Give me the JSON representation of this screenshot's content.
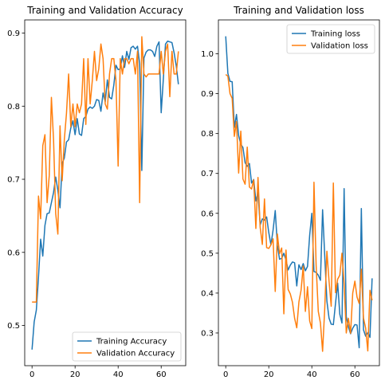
{
  "colors": {
    "series_a": "#1f77b4",
    "series_b": "#ff7f0e"
  },
  "chart_data": [
    {
      "type": "line",
      "title": "Training and Validation Accuracy",
      "xlabel": "",
      "ylabel": "",
      "xlim": [
        -3.4,
        71.4
      ],
      "ylim": [
        0.445,
        0.918
      ],
      "xticks": [
        0,
        20,
        40,
        60
      ],
      "yticks": [
        0.5,
        0.6,
        0.7,
        0.8,
        0.9
      ],
      "ytick_labels": [
        "0.5",
        "0.6",
        "0.7",
        "0.8",
        "0.9"
      ],
      "grid": false,
      "legend_position": "lower-right",
      "series": [
        {
          "name": "Training Accuracy",
          "color": "#1f77b4",
          "x": [
            0,
            1,
            2,
            3,
            4,
            5,
            6,
            7,
            8,
            9,
            10,
            11,
            12,
            13,
            14,
            15,
            16,
            17,
            18,
            19,
            20,
            21,
            22,
            23,
            24,
            25,
            26,
            27,
            28,
            29,
            30,
            31,
            32,
            33,
            34,
            35,
            36,
            37,
            38,
            39,
            40,
            41,
            42,
            43,
            44,
            45,
            46,
            47,
            48,
            49,
            50,
            51,
            52,
            53,
            54,
            55,
            56,
            57,
            58,
            59,
            60,
            61,
            62,
            63,
            64,
            65,
            66,
            67,
            68
          ],
          "y": [
            0.467,
            0.505,
            0.521,
            0.566,
            0.618,
            0.595,
            0.637,
            0.653,
            0.654,
            0.668,
            0.682,
            0.703,
            0.685,
            0.661,
            0.722,
            0.729,
            0.751,
            0.754,
            0.77,
            0.78,
            0.761,
            0.783,
            0.762,
            0.76,
            0.783,
            0.786,
            0.796,
            0.799,
            0.797,
            0.8,
            0.809,
            0.808,
            0.793,
            0.818,
            0.806,
            0.836,
            0.812,
            0.81,
            0.829,
            0.856,
            0.85,
            0.851,
            0.869,
            0.853,
            0.875,
            0.864,
            0.88,
            0.882,
            0.878,
            0.882,
            0.858,
            0.712,
            0.866,
            0.874,
            0.877,
            0.877,
            0.875,
            0.868,
            0.882,
            0.888,
            0.791,
            0.837,
            0.885,
            0.889,
            0.888,
            0.887,
            0.873,
            0.855,
            0.83
          ]
        },
        {
          "name": "Validation Accuracy",
          "color": "#ff7f0e",
          "x": [
            0,
            1,
            2,
            3,
            4,
            5,
            6,
            7,
            8,
            9,
            10,
            11,
            12,
            13,
            14,
            15,
            16,
            17,
            18,
            19,
            20,
            21,
            22,
            23,
            24,
            25,
            26,
            27,
            28,
            29,
            30,
            31,
            32,
            33,
            34,
            35,
            36,
            37,
            38,
            39,
            40,
            41,
            42,
            43,
            44,
            45,
            46,
            47,
            48,
            49,
            50,
            51,
            52,
            53,
            54,
            55,
            56,
            57,
            58,
            59,
            60,
            61,
            62,
            63,
            64,
            65,
            66,
            67,
            68
          ],
          "y": [
            0.532,
            0.532,
            0.532,
            0.677,
            0.646,
            0.746,
            0.761,
            0.668,
            0.705,
            0.812,
            0.754,
            0.653,
            0.625,
            0.773,
            0.698,
            0.754,
            0.79,
            0.844,
            0.772,
            0.803,
            0.772,
            0.803,
            0.791,
            0.803,
            0.865,
            0.775,
            0.865,
            0.803,
            0.835,
            0.875,
            0.835,
            0.851,
            0.885,
            0.865,
            0.803,
            0.796,
            0.844,
            0.865,
            0.865,
            0.835,
            0.718,
            0.865,
            0.844,
            0.865,
            0.865,
            0.858,
            0.865,
            0.865,
            0.844,
            0.875,
            0.668,
            0.895,
            0.844,
            0.84,
            0.844,
            0.844,
            0.844,
            0.844,
            0.844,
            0.844,
            0.875,
            0.844,
            0.875,
            0.885,
            0.813,
            0.875,
            0.844,
            0.844,
            0.875
          ]
        }
      ]
    },
    {
      "type": "line",
      "title": "Training and Validation loss",
      "xlabel": "",
      "ylabel": "",
      "xlim": [
        -3.4,
        71.4
      ],
      "ylim": [
        0.218,
        1.085
      ],
      "xticks": [
        0,
        20,
        40,
        60
      ],
      "yticks": [
        0.3,
        0.4,
        0.5,
        0.6,
        0.7,
        0.8,
        0.9,
        1.0
      ],
      "ytick_labels": [
        "0.3",
        "0.4",
        "0.5",
        "0.6",
        "0.7",
        "0.8",
        "0.9",
        "1.0"
      ],
      "grid": false,
      "legend_position": "upper-right",
      "series": [
        {
          "name": "Training loss",
          "color": "#1f77b4",
          "x": [
            0,
            1,
            2,
            3,
            4,
            5,
            6,
            7,
            8,
            9,
            10,
            11,
            12,
            13,
            14,
            15,
            16,
            17,
            18,
            19,
            20,
            21,
            22,
            23,
            24,
            25,
            26,
            27,
            28,
            29,
            30,
            31,
            32,
            33,
            34,
            35,
            36,
            37,
            38,
            39,
            40,
            41,
            42,
            43,
            44,
            45,
            46,
            47,
            48,
            49,
            50,
            51,
            52,
            53,
            54,
            55,
            56,
            57,
            58,
            59,
            60,
            61,
            62,
            63,
            64,
            65,
            66,
            67,
            68
          ],
          "y": [
            1.044,
            0.951,
            0.931,
            0.93,
            0.815,
            0.848,
            0.795,
            0.773,
            0.765,
            0.727,
            0.718,
            0.725,
            0.676,
            0.685,
            0.631,
            0.652,
            0.571,
            0.586,
            0.583,
            0.591,
            0.552,
            0.521,
            0.558,
            0.607,
            0.52,
            0.485,
            0.487,
            0.5,
            0.483,
            0.458,
            0.47,
            0.478,
            0.476,
            0.418,
            0.471,
            0.459,
            0.474,
            0.456,
            0.467,
            0.545,
            0.6,
            0.454,
            0.452,
            0.445,
            0.432,
            0.609,
            0.493,
            0.38,
            0.337,
            0.322,
            0.321,
            0.374,
            0.425,
            0.347,
            0.325,
            0.662,
            0.341,
            0.315,
            0.298,
            0.312,
            0.321,
            0.32,
            0.263,
            0.612,
            0.308,
            0.292,
            0.301,
            0.289,
            0.437
          ]
        },
        {
          "name": "Validation loss",
          "color": "#ff7f0e",
          "x": [
            0,
            1,
            2,
            3,
            4,
            5,
            6,
            7,
            8,
            9,
            10,
            11,
            12,
            13,
            14,
            15,
            16,
            17,
            18,
            19,
            20,
            21,
            22,
            23,
            24,
            25,
            26,
            27,
            28,
            29,
            30,
            31,
            32,
            33,
            34,
            35,
            36,
            37,
            38,
            39,
            40,
            41,
            42,
            43,
            44,
            45,
            46,
            47,
            48,
            49,
            50,
            51,
            52,
            53,
            54,
            55,
            56,
            57,
            58,
            59,
            60,
            61,
            62,
            63,
            64,
            65,
            66,
            67,
            68
          ],
          "y": [
            0.948,
            0.944,
            0.9,
            0.888,
            0.793,
            0.83,
            0.701,
            0.806,
            0.686,
            0.673,
            0.766,
            0.666,
            0.661,
            0.684,
            0.562,
            0.69,
            0.565,
            0.522,
            0.636,
            0.514,
            0.512,
            0.521,
            0.536,
            0.404,
            0.548,
            0.499,
            0.513,
            0.348,
            0.508,
            0.409,
            0.398,
            0.377,
            0.337,
            0.313,
            0.378,
            0.407,
            0.468,
            0.354,
            0.416,
            0.33,
            0.311,
            0.678,
            0.47,
            0.354,
            0.325,
            0.254,
            0.362,
            0.505,
            0.43,
            0.367,
            0.676,
            0.401,
            0.435,
            0.445,
            0.5,
            0.424,
            0.3,
            0.337,
            0.299,
            0.4,
            0.43,
            0.39,
            0.374,
            0.46,
            0.337,
            0.312,
            0.255,
            0.407,
            0.382
          ]
        }
      ]
    }
  ]
}
